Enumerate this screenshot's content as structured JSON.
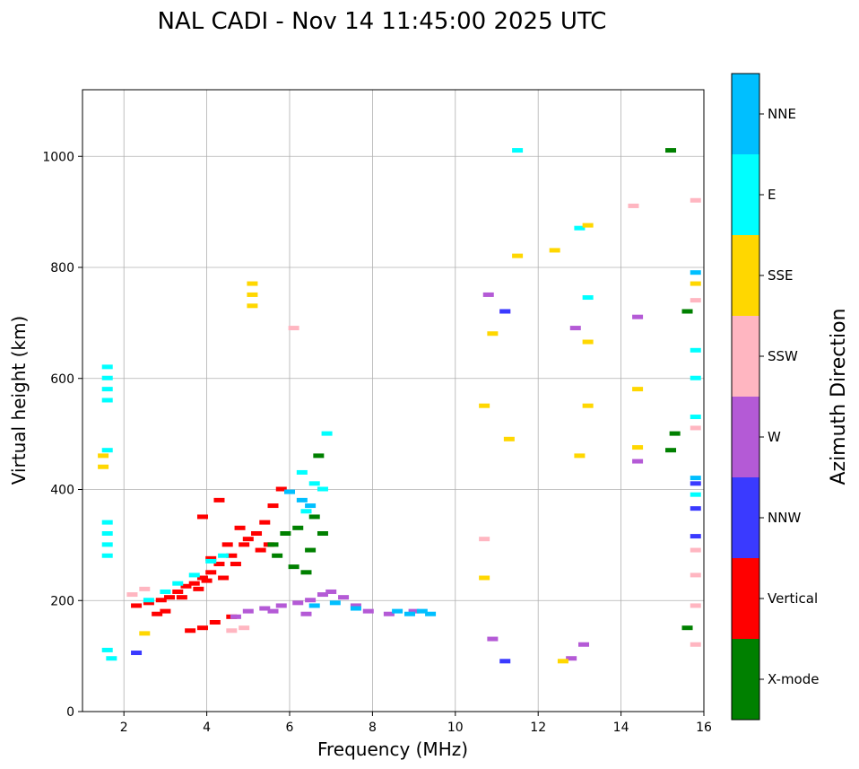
{
  "chart_data": {
    "type": "scatter",
    "title": "NAL CADI - Nov 14 11:45:00 2025 UTC",
    "xlabel": "Frequency (MHz)",
    "ylabel": "Virtual height (km)",
    "xlim": [
      1,
      16
    ],
    "ylim": [
      0,
      1120
    ],
    "x_ticks": [
      2,
      4,
      6,
      8,
      10,
      12,
      14,
      16
    ],
    "y_ticks": [
      0,
      200,
      400,
      600,
      800,
      1000
    ],
    "grid": true,
    "colorbar": {
      "title": "Azimuth Direction",
      "categories": [
        {
          "name": "X-mode",
          "color": "#008000"
        },
        {
          "name": "Vertical",
          "color": "#ff0000"
        },
        {
          "name": "NNW",
          "color": "#3a3aff"
        },
        {
          "name": "W",
          "color": "#b45ad6"
        },
        {
          "name": "SSW",
          "color": "#ffb6c1"
        },
        {
          "name": "SSE",
          "color": "#ffd700"
        },
        {
          "name": "E",
          "color": "#00ffff"
        },
        {
          "name": "NNE",
          "color": "#00bfff"
        }
      ]
    },
    "clusters": [
      {
        "name": "Vertical",
        "color": "#ff0000",
        "points": [
          [
            2.3,
            190
          ],
          [
            2.6,
            195
          ],
          [
            2.9,
            200
          ],
          [
            3.1,
            205
          ],
          [
            3.3,
            215
          ],
          [
            3.5,
            225
          ],
          [
            3.7,
            230
          ],
          [
            3.9,
            240
          ],
          [
            4.1,
            250
          ],
          [
            4.3,
            265
          ],
          [
            4.6,
            280
          ],
          [
            4.9,
            300
          ],
          [
            5.2,
            320
          ],
          [
            5.4,
            340
          ],
          [
            5.6,
            370
          ],
          [
            5.8,
            400
          ],
          [
            3.9,
            350
          ],
          [
            4.3,
            380
          ],
          [
            4.6,
            170
          ],
          [
            4.2,
            160
          ],
          [
            3.9,
            150
          ],
          [
            3.6,
            145
          ],
          [
            5.3,
            290
          ],
          [
            4.8,
            330
          ],
          [
            3.4,
            205
          ],
          [
            3.8,
            220
          ],
          [
            4.0,
            235
          ],
          [
            4.4,
            240
          ],
          [
            4.7,
            265
          ],
          [
            5.0,
            310
          ],
          [
            5.5,
            300
          ],
          [
            3.0,
            180
          ],
          [
            2.8,
            175
          ],
          [
            4.1,
            275
          ],
          [
            4.5,
            300
          ]
        ]
      },
      {
        "name": "X-mode",
        "color": "#008000",
        "points": [
          [
            5.6,
            300
          ],
          [
            5.9,
            320
          ],
          [
            6.2,
            330
          ],
          [
            6.5,
            290
          ],
          [
            6.8,
            320
          ],
          [
            6.6,
            350
          ],
          [
            6.7,
            460
          ],
          [
            5.7,
            280
          ],
          [
            6.1,
            260
          ],
          [
            6.4,
            250
          ],
          [
            15.2,
            470
          ],
          [
            15.3,
            500
          ],
          [
            15.2,
            1010
          ],
          [
            15.6,
            720
          ],
          [
            15.6,
            150
          ]
        ]
      },
      {
        "name": "W",
        "color": "#b45ad6",
        "points": [
          [
            5.0,
            180
          ],
          [
            5.4,
            185
          ],
          [
            5.8,
            190
          ],
          [
            6.2,
            195
          ],
          [
            6.5,
            200
          ],
          [
            6.8,
            210
          ],
          [
            7.0,
            215
          ],
          [
            7.3,
            205
          ],
          [
            7.6,
            190
          ],
          [
            7.9,
            180
          ],
          [
            6.4,
            175
          ],
          [
            5.6,
            180
          ],
          [
            8.4,
            175
          ],
          [
            9.0,
            180
          ],
          [
            4.7,
            170
          ],
          [
            10.8,
            750
          ],
          [
            11.2,
            720
          ],
          [
            12.9,
            690
          ],
          [
            14.4,
            710
          ],
          [
            14.4,
            450
          ],
          [
            13.1,
            120
          ],
          [
            12.8,
            95
          ],
          [
            10.9,
            130
          ]
        ]
      },
      {
        "name": "NNE",
        "color": "#00bfff",
        "points": [
          [
            6.6,
            190
          ],
          [
            7.1,
            195
          ],
          [
            7.6,
            185
          ],
          [
            8.6,
            180
          ],
          [
            8.9,
            175
          ],
          [
            9.2,
            180
          ],
          [
            9.4,
            175
          ],
          [
            6.0,
            395
          ],
          [
            6.3,
            380
          ],
          [
            6.5,
            370
          ],
          [
            15.8,
            790
          ],
          [
            15.8,
            420
          ]
        ]
      },
      {
        "name": "E",
        "color": "#00ffff",
        "points": [
          [
            1.6,
            620
          ],
          [
            1.6,
            600
          ],
          [
            1.6,
            580
          ],
          [
            1.6,
            560
          ],
          [
            1.6,
            470
          ],
          [
            1.6,
            340
          ],
          [
            1.6,
            320
          ],
          [
            1.6,
            300
          ],
          [
            1.6,
            280
          ],
          [
            1.6,
            110
          ],
          [
            1.7,
            95
          ],
          [
            2.6,
            200
          ],
          [
            3.0,
            215
          ],
          [
            3.3,
            230
          ],
          [
            3.7,
            245
          ],
          [
            4.1,
            270
          ],
          [
            4.4,
            280
          ],
          [
            6.3,
            430
          ],
          [
            6.6,
            410
          ],
          [
            6.8,
            400
          ],
          [
            6.9,
            500
          ],
          [
            6.4,
            360
          ],
          [
            11.5,
            1010
          ],
          [
            13.0,
            870
          ],
          [
            13.2,
            745
          ],
          [
            15.8,
            650
          ],
          [
            15.8,
            600
          ],
          [
            15.8,
            530
          ],
          [
            15.8,
            390
          ]
        ]
      },
      {
        "name": "SSE",
        "color": "#ffd700",
        "points": [
          [
            5.1,
            770
          ],
          [
            5.1,
            750
          ],
          [
            5.1,
            730
          ],
          [
            1.5,
            460
          ],
          [
            1.5,
            440
          ],
          [
            2.5,
            140
          ],
          [
            10.7,
            550
          ],
          [
            10.9,
            680
          ],
          [
            11.3,
            490
          ],
          [
            11.5,
            820
          ],
          [
            12.4,
            830
          ],
          [
            13.0,
            460
          ],
          [
            13.2,
            875
          ],
          [
            13.2,
            665
          ],
          [
            13.2,
            550
          ],
          [
            14.4,
            580
          ],
          [
            14.4,
            475
          ],
          [
            15.8,
            770
          ],
          [
            10.7,
            240
          ],
          [
            12.6,
            90
          ]
        ]
      },
      {
        "name": "SSW",
        "color": "#ffb6c1",
        "points": [
          [
            4.6,
            145
          ],
          [
            4.9,
            150
          ],
          [
            2.2,
            210
          ],
          [
            2.5,
            220
          ],
          [
            6.1,
            690
          ],
          [
            14.3,
            910
          ],
          [
            15.8,
            920
          ],
          [
            15.8,
            740
          ],
          [
            15.8,
            510
          ],
          [
            15.8,
            290
          ],
          [
            15.8,
            245
          ],
          [
            15.8,
            190
          ],
          [
            15.8,
            120
          ],
          [
            10.7,
            310
          ]
        ]
      },
      {
        "name": "NNW",
        "color": "#3a3aff",
        "points": [
          [
            2.3,
            105
          ],
          [
            11.2,
            90
          ],
          [
            11.2,
            720
          ],
          [
            15.8,
            410
          ],
          [
            15.8,
            365
          ],
          [
            15.8,
            315
          ]
        ]
      }
    ]
  }
}
